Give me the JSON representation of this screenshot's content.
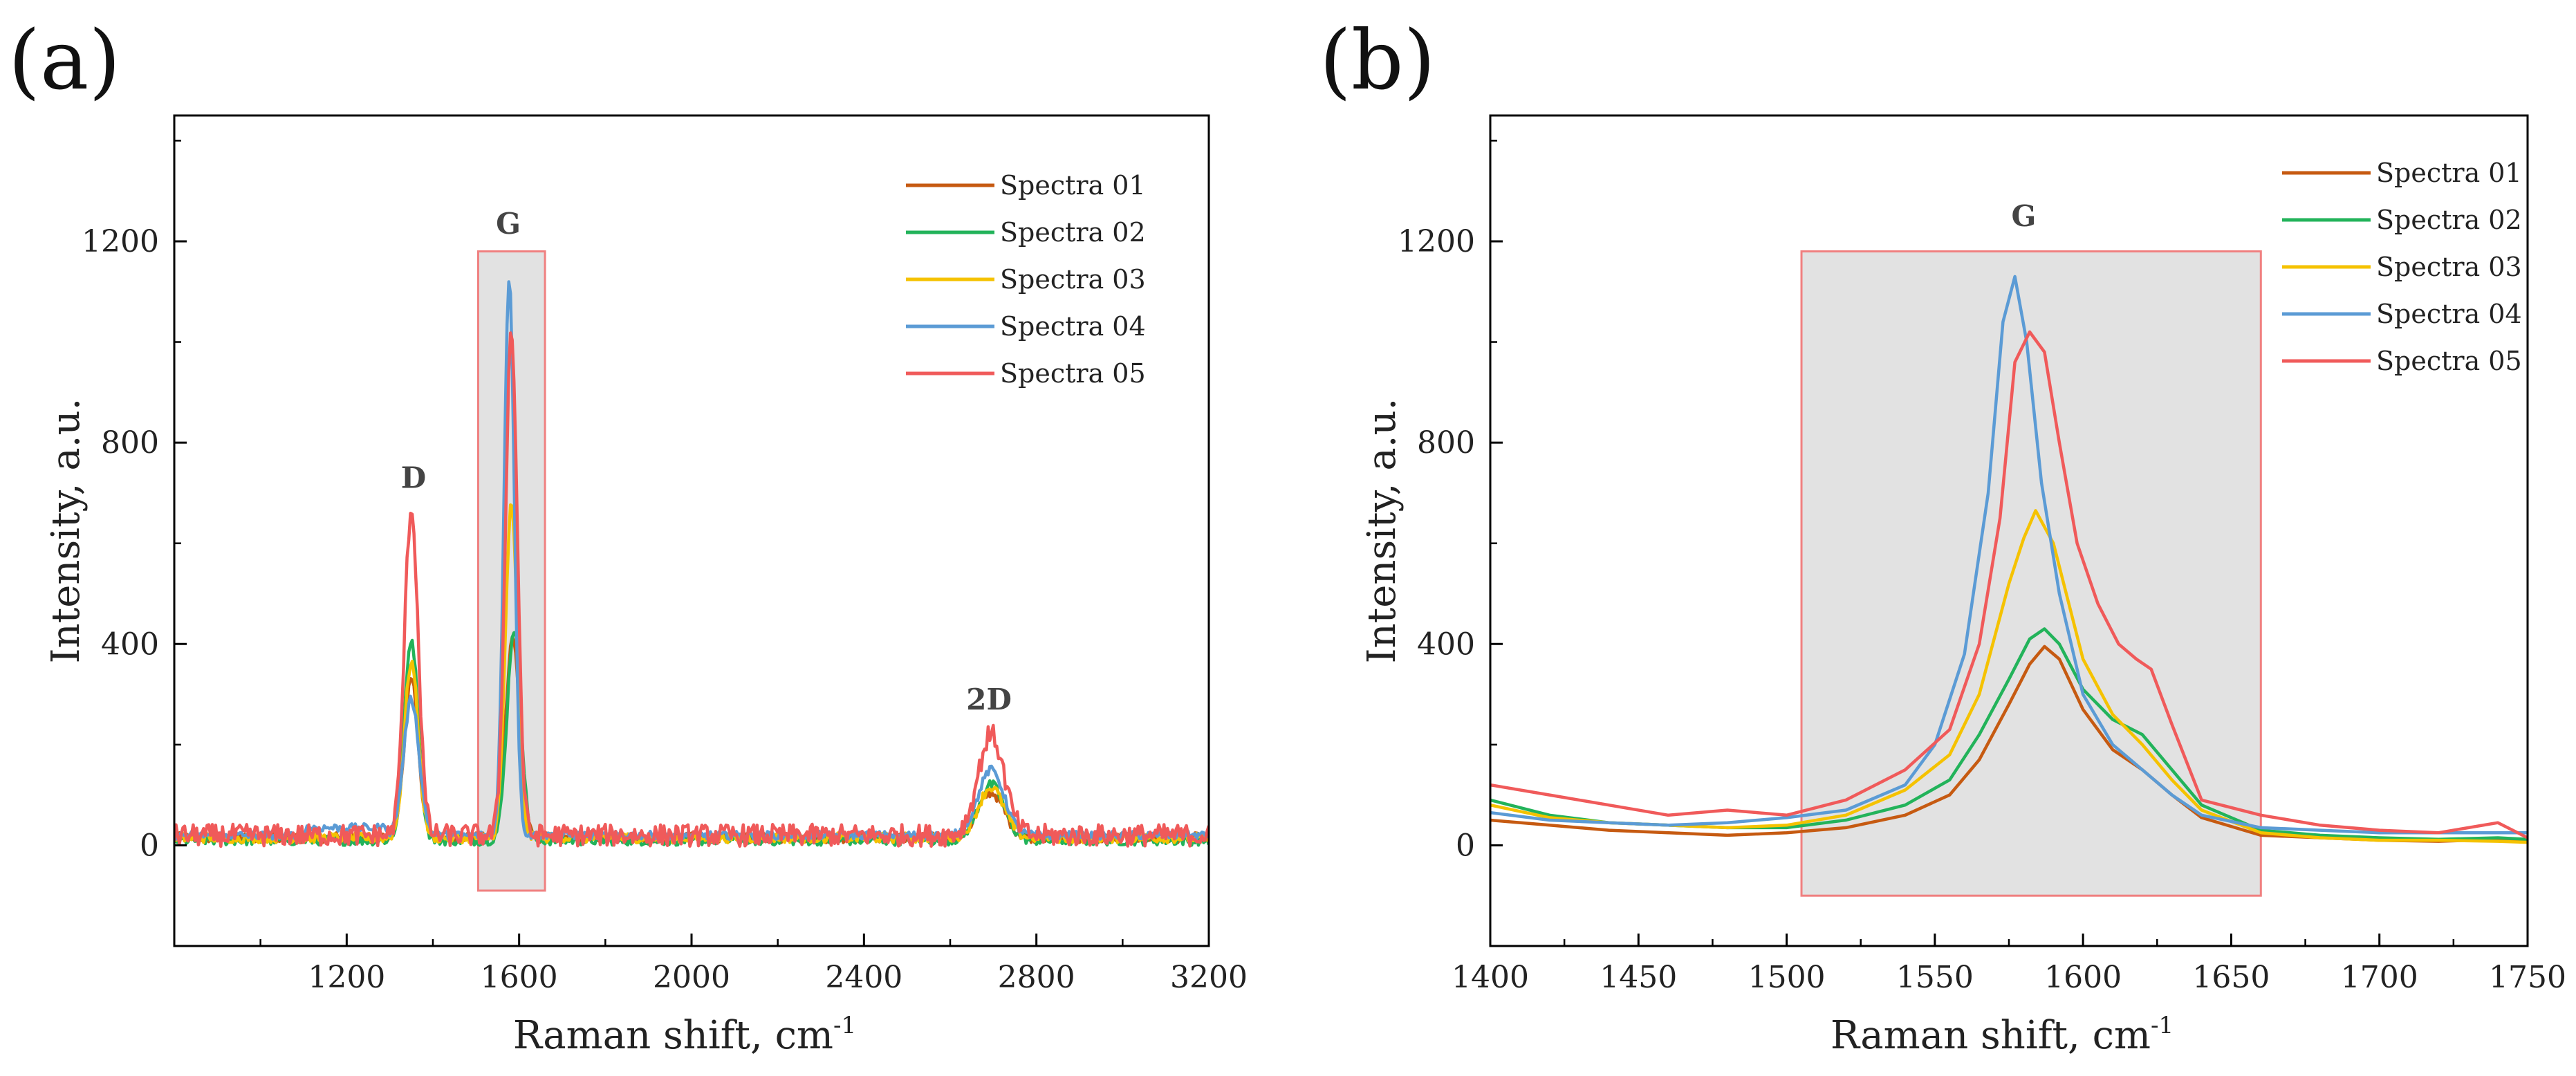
{
  "chart_data": [
    {
      "panel": "(a)",
      "type": "line",
      "xlabel": "Raman shift, cm",
      "xlabel_sup": "-1",
      "ylabel": "Intensity, a.u.",
      "xlim": [
        800,
        3200
      ],
      "ylim": [
        -200,
        1450
      ],
      "xticks": [
        1200,
        1600,
        2000,
        2400,
        2800,
        3200
      ],
      "yticks": [
        0,
        400,
        800,
        1200
      ],
      "highlight": {
        "x0": 1505,
        "x1": 1660,
        "y0": -90,
        "y1": 1180
      },
      "annotations": [
        {
          "text": "D",
          "x": 1355,
          "y": 710
        },
        {
          "text": "G",
          "x": 1575,
          "y": 1215
        },
        {
          "text": "2D",
          "x": 2690,
          "y": 270
        }
      ],
      "series": [
        {
          "name": "Spectra 01",
          "color": "#c65a11",
          "base": 15,
          "noise": 10,
          "peaks": [
            [
              1350,
              320,
              16
            ],
            [
              1585,
              400,
              16
            ],
            [
              2695,
              90,
              30
            ]
          ]
        },
        {
          "name": "Spectra 02",
          "color": "#22b35a",
          "base": 10,
          "noise": 10,
          "peaks": [
            [
              1350,
              400,
              16
            ],
            [
              1588,
              420,
              16
            ],
            [
              2695,
              110,
              30
            ]
          ]
        },
        {
          "name": "Spectra 03",
          "color": "#f5c200",
          "base": 15,
          "noise": 10,
          "peaks": [
            [
              1350,
              350,
              16
            ],
            [
              1582,
              660,
              14
            ],
            [
              2695,
              100,
              30
            ]
          ]
        },
        {
          "name": "Spectra 04",
          "color": "#5b9bd5",
          "base": 20,
          "noise": 8,
          "peaks": [
            [
              1350,
              270,
              18
            ],
            [
              1577,
              1110,
              12
            ],
            [
              2695,
              130,
              30
            ]
          ]
        },
        {
          "name": "Spectra 05",
          "color": "#f05a5a",
          "base": 20,
          "noise": 22,
          "peaks": [
            [
              1350,
              650,
              16
            ],
            [
              1582,
              1000,
              14
            ],
            [
              2695,
              200,
              30
            ]
          ]
        }
      ]
    },
    {
      "panel": "(b)",
      "type": "line",
      "xlabel": "Raman shift, cm",
      "xlabel_sup": "-1",
      "ylabel": "Intensity, a.u.",
      "xlim": [
        1400,
        1750
      ],
      "ylim": [
        -200,
        1450
      ],
      "xticks": [
        1400,
        1450,
        1500,
        1550,
        1600,
        1650,
        1700,
        1750
      ],
      "yticks": [
        0,
        400,
        800,
        1200
      ],
      "highlight": {
        "x0": 1505,
        "x1": 1660,
        "y0": -100,
        "y1": 1180
      },
      "annotations": [
        {
          "text": "G",
          "x": 1580,
          "y": 1230
        }
      ],
      "series": [
        {
          "name": "Spectra 01",
          "color": "#c65a11",
          "x": [
            1400,
            1420,
            1440,
            1460,
            1480,
            1500,
            1520,
            1540,
            1555,
            1565,
            1575,
            1582,
            1587,
            1592,
            1600,
            1610,
            1620,
            1630,
            1640,
            1660,
            1680,
            1700,
            1720,
            1740,
            1750
          ],
          "y": [
            50,
            40,
            30,
            25,
            20,
            25,
            35,
            60,
            100,
            170,
            280,
            360,
            395,
            370,
            270,
            190,
            150,
            100,
            55,
            20,
            15,
            10,
            8,
            12,
            10
          ]
        },
        {
          "name": "Spectra 02",
          "color": "#22b35a",
          "x": [
            1400,
            1420,
            1440,
            1460,
            1480,
            1500,
            1520,
            1540,
            1555,
            1565,
            1575,
            1582,
            1587,
            1592,
            1600,
            1610,
            1620,
            1630,
            1640,
            1660,
            1680,
            1700,
            1720,
            1740,
            1750
          ],
          "y": [
            90,
            60,
            45,
            40,
            35,
            35,
            50,
            80,
            130,
            220,
            330,
            410,
            430,
            400,
            310,
            250,
            220,
            150,
            80,
            30,
            20,
            15,
            12,
            15,
            12
          ]
        },
        {
          "name": "Spectra 03",
          "color": "#f5c200",
          "x": [
            1400,
            1420,
            1440,
            1460,
            1480,
            1500,
            1520,
            1540,
            1555,
            1565,
            1575,
            1580,
            1584,
            1590,
            1600,
            1610,
            1620,
            1630,
            1640,
            1660,
            1680,
            1700,
            1720,
            1740,
            1750
          ],
          "y": [
            80,
            55,
            45,
            40,
            35,
            40,
            60,
            110,
            180,
            300,
            520,
            610,
            665,
            600,
            370,
            260,
            200,
            130,
            70,
            25,
            15,
            10,
            10,
            8,
            6
          ]
        },
        {
          "name": "Spectra 04",
          "color": "#5b9bd5",
          "x": [
            1400,
            1420,
            1440,
            1460,
            1480,
            1500,
            1520,
            1540,
            1550,
            1560,
            1568,
            1573,
            1577,
            1581,
            1586,
            1592,
            1600,
            1610,
            1620,
            1630,
            1640,
            1660,
            1680,
            1700,
            1720,
            1750
          ],
          "y": [
            65,
            50,
            45,
            40,
            45,
            55,
            70,
            120,
            200,
            380,
            700,
            1040,
            1130,
            1000,
            720,
            500,
            300,
            200,
            150,
            100,
            60,
            35,
            30,
            25,
            25,
            25
          ]
        },
        {
          "name": "Spectra 05",
          "color": "#f05a5a",
          "x": [
            1400,
            1420,
            1440,
            1460,
            1480,
            1500,
            1520,
            1540,
            1555,
            1565,
            1572,
            1577,
            1582,
            1587,
            1592,
            1598,
            1605,
            1612,
            1618,
            1623,
            1630,
            1640,
            1660,
            1680,
            1700,
            1720,
            1740,
            1750
          ],
          "y": [
            120,
            100,
            80,
            60,
            70,
            60,
            90,
            150,
            230,
            400,
            650,
            960,
            1020,
            980,
            800,
            600,
            480,
            400,
            370,
            350,
            240,
            90,
            60,
            40,
            30,
            25,
            45,
            15
          ]
        }
      ]
    }
  ]
}
